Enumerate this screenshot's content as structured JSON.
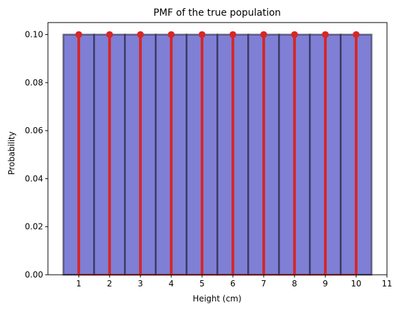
{
  "chart_data": {
    "type": "bar",
    "title": "PMF of the true population",
    "xlabel": "Height (cm)",
    "ylabel": "Probability",
    "xlim": [
      0,
      11
    ],
    "ylim": [
      0,
      0.105
    ],
    "xticks": [
      "1",
      "2",
      "3",
      "4",
      "5",
      "6",
      "7",
      "8",
      "9",
      "10",
      "11"
    ],
    "yticks": [
      "0.00",
      "0.02",
      "0.04",
      "0.06",
      "0.08",
      "0.10"
    ],
    "categories": [
      1,
      2,
      3,
      4,
      5,
      6,
      7,
      8,
      9,
      10
    ],
    "values": [
      0.1,
      0.1,
      0.1,
      0.1,
      0.1,
      0.1,
      0.1,
      0.1,
      0.1,
      0.1
    ],
    "series": [
      {
        "kind": "bar",
        "color": "#7f7fd5",
        "edge_color": "#1a1a2e",
        "values": [
          0.1,
          0.1,
          0.1,
          0.1,
          0.1,
          0.1,
          0.1,
          0.1,
          0.1,
          0.1
        ]
      },
      {
        "kind": "stem",
        "color": "#d62728",
        "values": [
          0.1,
          0.1,
          0.1,
          0.1,
          0.1,
          0.1,
          0.1,
          0.1,
          0.1,
          0.1
        ]
      }
    ],
    "grid": false,
    "legend": "none"
  }
}
